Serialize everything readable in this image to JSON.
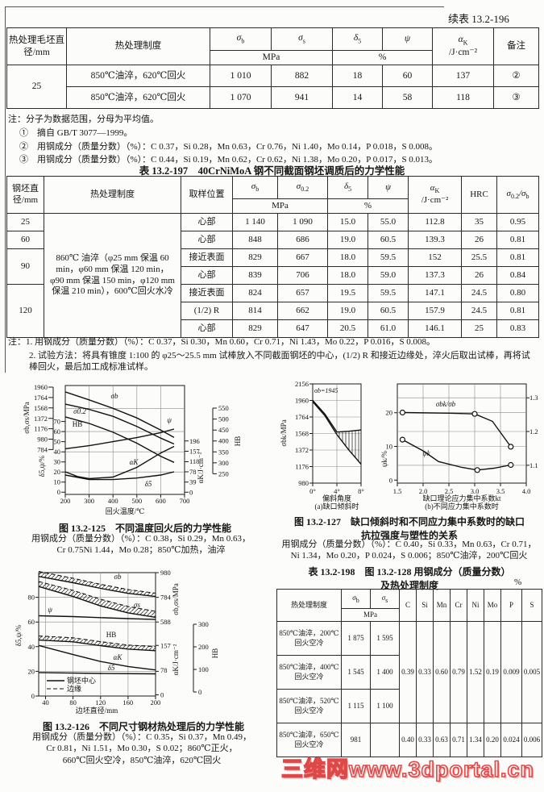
{
  "header": {
    "continued": "续表 13.2-196"
  },
  "sym": {
    "sb": [
      "σ",
      "b"
    ],
    "ss": [
      "σ",
      "s"
    ],
    "s02": [
      "σ",
      "0.2"
    ],
    "d5": [
      "δ",
      "5"
    ],
    "psi": "ψ",
    "ak": [
      "α",
      "K"
    ],
    "slash": "/σ"
  },
  "u": {
    "mpa": "MPa",
    "pct": "%",
    "akunit": "/J·cm⁻²",
    "hrc": "HRC"
  },
  "t196": {
    "h": {
      "diameter": "热处理毛坯直径/mm",
      "treat": "热处理制度",
      "remark": "备注"
    },
    "diameter": "25",
    "rows": [
      {
        "treat": "850℃油淬，620℃回火",
        "sb": "1 010",
        "ss": "882",
        "d5": "18",
        "psi": "60",
        "ak": "137",
        "rem": "②"
      },
      {
        "treat": "850℃油淬，620℃回火",
        "sb": "1 070",
        "ss": "941",
        "d5": "14",
        "psi": "58",
        "ak": "118",
        "rem": "③"
      }
    ]
  },
  "notes196": [
    "注：分子为数据范围，分母为平均值。",
    "①　摘自 GB/T 3077—1999。",
    "②　用钢成分（质量分数）（%）：C 0.37，Si 0.28，Mn 0.63，Cr 0.76，Ni 1.40，Mo 0.14，P 0.018，S 0.008。",
    "③　用钢成分（质量分数）（%）：C 0.44，Si 0.19，Mn 0.62，Cr 0.62，Ni 1.38，Mo 0.20，P 0.017，S 0.013。"
  ],
  "t197": {
    "title": "表 13.2-197　40CrNiMoA 钢不同截面钢坯调质后的力学性能",
    "h": {
      "diameter": "钢坯直径/mm",
      "treat": "热处理制度",
      "pos": "取样位置"
    },
    "treatment": "860℃ 油淬（φ25 mm 保温 60 min，φ60 mm 保温 120 min，φ90 mm 保温 150 min，φ120 mm 保温 210 min），600℃回火水冷",
    "diams": [
      "25",
      "60",
      "90",
      "120"
    ],
    "rows": [
      {
        "pos": "心部",
        "sb": "1 140",
        "s02": "1 090",
        "d5": "15.0",
        "psi": "55.0",
        "ak": "112.8",
        "hrc": "35",
        "r": "0.95"
      },
      {
        "pos": "心部",
        "sb": "848",
        "s02": "686",
        "d5": "19.0",
        "psi": "60.5",
        "ak": "139.3",
        "hrc": "26",
        "r": "0.81"
      },
      {
        "pos": "接近表面",
        "sb": "829",
        "s02": "667",
        "d5": "18.0",
        "psi": "59.5",
        "ak": "152",
        "hrc": "25.5",
        "r": "0.81"
      },
      {
        "pos": "心部",
        "sb": "839",
        "s02": "706",
        "d5": "18.0",
        "psi": "59.0",
        "ak": "137.3",
        "hrc": "26",
        "r": "0.84"
      },
      {
        "pos": "接近表面",
        "sb": "824",
        "s02": "657",
        "d5": "19.5",
        "psi": "59.5",
        "ak": "147.1",
        "hrc": "24.5",
        "r": "0.80"
      },
      {
        "pos": "(1/2) R",
        "sb": "814",
        "s02": "662",
        "d5": "19.0",
        "psi": "60.5",
        "ak": "157.9",
        "hrc": "24.5",
        "r": "0.81"
      },
      {
        "pos": "心部",
        "sb": "829",
        "s02": "647",
        "d5": "20.5",
        "psi": "61.0",
        "ak": "146.1",
        "hrc": "25",
        "r": "0.83"
      }
    ]
  },
  "notes197": [
    "注：1. 用钢成分（质量分数）（%）：C 0.37，Si 0.30，Mn 0.60，Cr 0.71，Ni 1.43，Mo 0.22，P 0.016，S 0.008。",
    "2. 试验方法：将具有锥度 1:100 的 φ25～25.5 mm 试棒放入不同截面钢坯的中心，(1/2) R 和接近边缘处，淬火后取出试棒，再将试棒回火，最后加工成标准试样。"
  ],
  "fig125cap": {
    "title": "图 13.2-125　不同温度回火后的力学性能",
    "c1": "用钢成分（质量分数）（%）：C 0.38，Si 0.29，Mn 0.63，",
    "c2": "Cr 0.75Ni 1.44，Mo 0.28；850℃加热，油淬"
  },
  "fig126cap": {
    "title": "图 13.2-126　不同尺寸钢材热处理后的力学性能",
    "c1": "用钢成分（质量分数）（%）：C 0.35，Si 0.37，Mn 0.49，",
    "c2": "Cr 0.81，Ni 1.51，Mo 0.30，S 0.02；860℃正火，",
    "c3": "660℃回火空冷，850℃油淬，620℃回火"
  },
  "fig127cap": {
    "t1": "图 13.2-127　缺口倾斜时和不同应力集中系数时的缺口",
    "t2": "抗拉强度与塑性的关系",
    "c1": "用钢成分（质量分数）（%）：C 0.40，Si 0.33，Mn 0.63，Cr 0.71，",
    "c2": "Ni 1.34，Mo 0.20，P 0.024，S 0.006；850℃油淬，200℃回火"
  },
  "t198": {
    "t1": "表 13.2-198　图 13.2-128 用钢成分（质量分数）",
    "t2": "及热处理制度",
    "pct": "%",
    "h": {
      "treat": "热处理制度"
    },
    "elements": [
      "C",
      "Si",
      "Mn",
      "Cr",
      "Ni",
      "Mo",
      "P",
      "S"
    ],
    "rows": [
      {
        "t": "850℃油淬，200℃回火空冷",
        "sb": "1 875",
        "ss": "1 595"
      },
      {
        "t": "850℃油淬，400℃回火空冷",
        "sb": "1 545",
        "ss": "1 400"
      },
      {
        "t": "850℃油淬，520℃回火空冷",
        "sb": "1 115",
        "ss": "1 100"
      },
      {
        "t": "850℃油淬，650℃回火空冷",
        "sb": "981",
        "ss": ""
      }
    ],
    "compA": [
      "0.39",
      "0.33",
      "0.60",
      "0.79",
      "1.52",
      "0.19",
      "0.009",
      "0.005"
    ],
    "compB": [
      "0.40",
      "0.33",
      "0.63",
      "0.71",
      "1.34",
      "0.20",
      "0.024",
      "0.006"
    ]
  },
  "watermark": "三维网www.3dportal.cn",
  "chart_data": [
    {
      "id": "fig125",
      "type": "line",
      "title": "图 13.2-125 不同温度回火后的力学性能",
      "xlabel": "回火温度/℃",
      "x_ticks": [
        200,
        300,
        400,
        500,
        600,
        700
      ],
      "y_left_mpa": {
        "label": "σb,σs/MPa",
        "ticks": [
          1960,
          1764,
          1568,
          1372,
          1176,
          980,
          784
        ]
      },
      "y_left_pct": {
        "label": "δ5,ψ/%",
        "ticks": [
          70,
          60,
          50,
          40,
          30,
          20,
          10,
          0
        ]
      },
      "y_right_ak": {
        "label": "αK/J·cm⁻²",
        "ticks": [
          196,
          157,
          118,
          78,
          39,
          0
        ]
      },
      "y_right_hb": {
        "label": "HB",
        "ticks": [
          550,
          500,
          450,
          400,
          350,
          300,
          250
        ]
      },
      "series": [
        {
          "name": "σb",
          "unit": "MPa",
          "x": [
            200,
            300,
            400,
            500,
            600,
            650
          ],
          "y": [
            1870,
            1720,
            1560,
            1380,
            1150,
            1030
          ]
        },
        {
          "name": "σ0.2",
          "unit": "MPa",
          "x": [
            200,
            300,
            400,
            500,
            600,
            650
          ],
          "y": [
            1640,
            1540,
            1410,
            1220,
            1000,
            900
          ]
        },
        {
          "name": "HB",
          "unit": "HB",
          "x": [
            200,
            300,
            400,
            500,
            600,
            650
          ],
          "y": [
            510,
            480,
            440,
            390,
            330,
            305
          ]
        },
        {
          "name": "ψ",
          "unit": "%",
          "x": [
            200,
            300,
            400,
            500,
            600,
            650
          ],
          "y": [
            43,
            46,
            50,
            54,
            59,
            62
          ]
        },
        {
          "name": "αK",
          "unit": "J/cm2",
          "x": [
            200,
            300,
            400,
            500,
            600,
            650
          ],
          "y": [
            78,
            52,
            58,
            95,
            150,
            172
          ]
        },
        {
          "name": "δ5",
          "unit": "%",
          "x": [
            200,
            300,
            400,
            500,
            600,
            650
          ],
          "y": [
            17,
            12.5,
            12.5,
            14,
            17,
            20
          ]
        }
      ]
    },
    {
      "id": "fig126",
      "type": "line",
      "title": "图 13.2-126 不同尺寸钢材热处理后的力学性能",
      "xlabel": "边坯直径/mm",
      "x_ticks": [
        40,
        80,
        120,
        160,
        200
      ],
      "y_left_pct": {
        "label": "δ5,ψ/%",
        "ticks": [
          80,
          60,
          40,
          20,
          0
        ]
      },
      "y_right_mpa": {
        "label": "σb,σs/MPa",
        "ticks": [
          980,
          784,
          588
        ]
      },
      "y_right_ak": {
        "label": "αK/J·cm⁻²",
        "ticks": [
          157,
          78,
          0
        ]
      },
      "y_right_hb": {
        "label": "HB",
        "ticks": [
          300,
          200,
          100,
          0
        ]
      },
      "legend": [
        "钢坯中心",
        "边缘"
      ],
      "series": [
        {
          "name": "σb",
          "unit": "MPa",
          "x": [
            30,
            80,
            120,
            160,
            200
          ],
          "center": [
            950,
            900,
            855,
            815,
            790
          ],
          "edge": [
            990,
            935,
            895,
            860,
            835
          ]
        },
        {
          "name": "σs",
          "unit": "MPa",
          "x": [
            30,
            80,
            120,
            160,
            200
          ],
          "center": [
            870,
            790,
            715,
            660,
            625
          ],
          "edge": [
            910,
            838,
            765,
            712,
            678
          ]
        },
        {
          "name": "ψ",
          "unit": "%",
          "x": [
            30,
            80,
            120,
            160,
            200
          ],
          "center": [
            65,
            64.5,
            64,
            63,
            62
          ]
        },
        {
          "name": "HB",
          "unit": "HB",
          "x": [
            30,
            80,
            120,
            160,
            200
          ],
          "center": [
            230,
            222,
            205,
            190,
            183
          ],
          "edge": [
            248,
            240,
            223,
            208,
            200
          ]
        },
        {
          "name": "αK",
          "unit": "J/cm2",
          "x": [
            30,
            80,
            120,
            160,
            200
          ],
          "center": [
            157,
            128,
            106,
            90,
            79
          ]
        },
        {
          "name": "δ5",
          "unit": "%",
          "x": [
            30,
            120,
            200
          ],
          "center": [
            19,
            18.5,
            18
          ]
        }
      ]
    },
    {
      "id": "fig127a",
      "type": "line",
      "subtitle": "(a)缺口倾斜时",
      "xlabel": "偏斜角度",
      "x_ticks": [
        "0°",
        "4°",
        "8°"
      ],
      "ylabel": "σbk/MPa",
      "y_ticks": [
        2156,
        1960,
        1764,
        1568,
        1372,
        1176,
        980
      ],
      "annotation": "σb=1945",
      "series": [
        {
          "name": "upper",
          "x": [
            0,
            2,
            4,
            6,
            8
          ],
          "y": [
            1960,
            1800,
            1585,
            1595,
            1610
          ]
        },
        {
          "name": "lower",
          "x": [
            0,
            2,
            4,
            6,
            8
          ],
          "y": [
            1945,
            1780,
            1555,
            1370,
            1205
          ]
        }
      ]
    },
    {
      "id": "fig127b",
      "type": "line",
      "subtitle": "(b)不同应力集中系数时",
      "xlabel": "缺口理论应力集中系数kt",
      "x_ticks": [
        "1.5",
        "2.0",
        "2.5",
        "3.0",
        "3.5",
        "4.0"
      ],
      "y_left": {
        "label": "ψk/%",
        "ticks": [
          20,
          10,
          0
        ]
      },
      "y_right": {
        "label": "σbk/σb",
        "ticks": [
          "1.3",
          "1.2",
          "1.1"
        ]
      },
      "series": [
        {
          "name": "σbk/σb",
          "axis": "right",
          "x": [
            1.6,
            3.0,
            3.35,
            3.7
          ],
          "y": [
            1.256,
            1.252,
            1.23,
            1.155
          ]
        },
        {
          "name": "ψk",
          "axis": "left",
          "x": [
            1.6,
            2.3,
            3.05,
            3.7
          ],
          "y": [
            12,
            5.5,
            3,
            4.5
          ]
        }
      ]
    }
  ]
}
